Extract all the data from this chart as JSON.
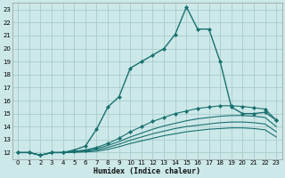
{
  "xlabel": "Humidex (Indice chaleur)",
  "bg_color": "#cce8e8",
  "grid_color": "#aacccc",
  "line_color": "#1a7070",
  "xlim": [
    -0.5,
    23.5
  ],
  "ylim": [
    11.5,
    23.5
  ],
  "xticks": [
    0,
    1,
    2,
    3,
    4,
    5,
    6,
    7,
    8,
    9,
    10,
    11,
    12,
    13,
    14,
    15,
    16,
    17,
    18,
    19,
    20,
    21,
    22,
    23
  ],
  "yticks": [
    12,
    13,
    14,
    15,
    16,
    17,
    18,
    19,
    20,
    21,
    22,
    23
  ],
  "lines": [
    {
      "x": [
        0,
        1,
        2,
        3,
        4,
        5,
        6,
        7,
        8,
        9,
        10,
        11,
        12,
        13,
        14,
        15,
        16,
        17,
        18,
        19,
        20,
        21,
        22,
        23
      ],
      "y": [
        12.0,
        12.0,
        11.8,
        12.0,
        12.0,
        12.2,
        12.5,
        13.8,
        15.5,
        16.3,
        18.5,
        19.0,
        19.5,
        20.0,
        21.1,
        23.2,
        21.5,
        21.5,
        19.0,
        15.5,
        15.0,
        15.0,
        15.1,
        14.5
      ],
      "marker": "D",
      "lw": 1.0
    },
    {
      "x": [
        0,
        1,
        2,
        3,
        4,
        5,
        6,
        7,
        8,
        9,
        10,
        11,
        12,
        13,
        14,
        15,
        16,
        17,
        18,
        19,
        20,
        21,
        22,
        23
      ],
      "y": [
        12.0,
        12.0,
        11.8,
        12.0,
        12.0,
        12.1,
        12.2,
        12.4,
        12.7,
        13.1,
        13.6,
        14.0,
        14.4,
        14.7,
        15.0,
        15.2,
        15.4,
        15.5,
        15.6,
        15.6,
        15.55,
        15.45,
        15.35,
        14.5
      ],
      "marker": "D",
      "lw": 0.8
    },
    {
      "x": [
        0,
        1,
        2,
        3,
        4,
        5,
        6,
        7,
        8,
        9,
        10,
        11,
        12,
        13,
        14,
        15,
        16,
        17,
        18,
        19,
        20,
        21,
        22,
        23
      ],
      "y": [
        12.0,
        12.0,
        11.8,
        12.0,
        12.0,
        12.1,
        12.15,
        12.3,
        12.55,
        12.85,
        13.2,
        13.5,
        13.8,
        14.05,
        14.25,
        14.45,
        14.6,
        14.7,
        14.8,
        14.85,
        14.85,
        14.8,
        14.7,
        14.0
      ],
      "marker": null,
      "lw": 0.8
    },
    {
      "x": [
        0,
        1,
        2,
        3,
        4,
        5,
        6,
        7,
        8,
        9,
        10,
        11,
        12,
        13,
        14,
        15,
        16,
        17,
        18,
        19,
        20,
        21,
        22,
        23
      ],
      "y": [
        12.0,
        12.0,
        11.8,
        12.0,
        12.0,
        12.05,
        12.1,
        12.2,
        12.4,
        12.65,
        12.95,
        13.2,
        13.45,
        13.65,
        13.85,
        14.0,
        14.1,
        14.2,
        14.3,
        14.35,
        14.35,
        14.3,
        14.2,
        13.6
      ],
      "marker": null,
      "lw": 0.8
    },
    {
      "x": [
        0,
        1,
        2,
        3,
        4,
        5,
        6,
        7,
        8,
        9,
        10,
        11,
        12,
        13,
        14,
        15,
        16,
        17,
        18,
        19,
        20,
        21,
        22,
        23
      ],
      "y": [
        12.0,
        12.0,
        11.8,
        12.0,
        12.0,
        12.02,
        12.05,
        12.1,
        12.25,
        12.45,
        12.7,
        12.9,
        13.1,
        13.3,
        13.45,
        13.6,
        13.7,
        13.8,
        13.85,
        13.9,
        13.9,
        13.85,
        13.75,
        13.2
      ],
      "marker": null,
      "lw": 0.8
    }
  ]
}
